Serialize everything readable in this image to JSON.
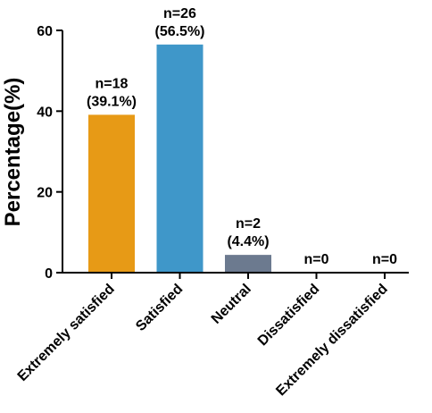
{
  "chart_data": {
    "type": "bar",
    "categories": [
      "Extremely satisfied",
      "Satisfied",
      "Neutral",
      "Dissatisfied",
      "Extremely dissatisfied"
    ],
    "values": [
      39.1,
      56.5,
      4.4,
      0,
      0
    ],
    "data_labels": [
      [
        "n=18",
        "(39.1%)"
      ],
      [
        "n=26",
        "(56.5%)"
      ],
      [
        "n=2",
        "(4.4%)"
      ],
      [
        "n=0"
      ],
      [
        "n=0"
      ]
    ],
    "colors": [
      "#e79a16",
      "#3f97c9",
      "#6c7a8f",
      "#6c7a8f",
      "#6c7a8f"
    ],
    "ylabel": "Percentage(%)",
    "xlabel": "",
    "ylim": [
      0,
      60
    ],
    "yticks": [
      0,
      20,
      40,
      60
    ],
    "grid": false
  }
}
